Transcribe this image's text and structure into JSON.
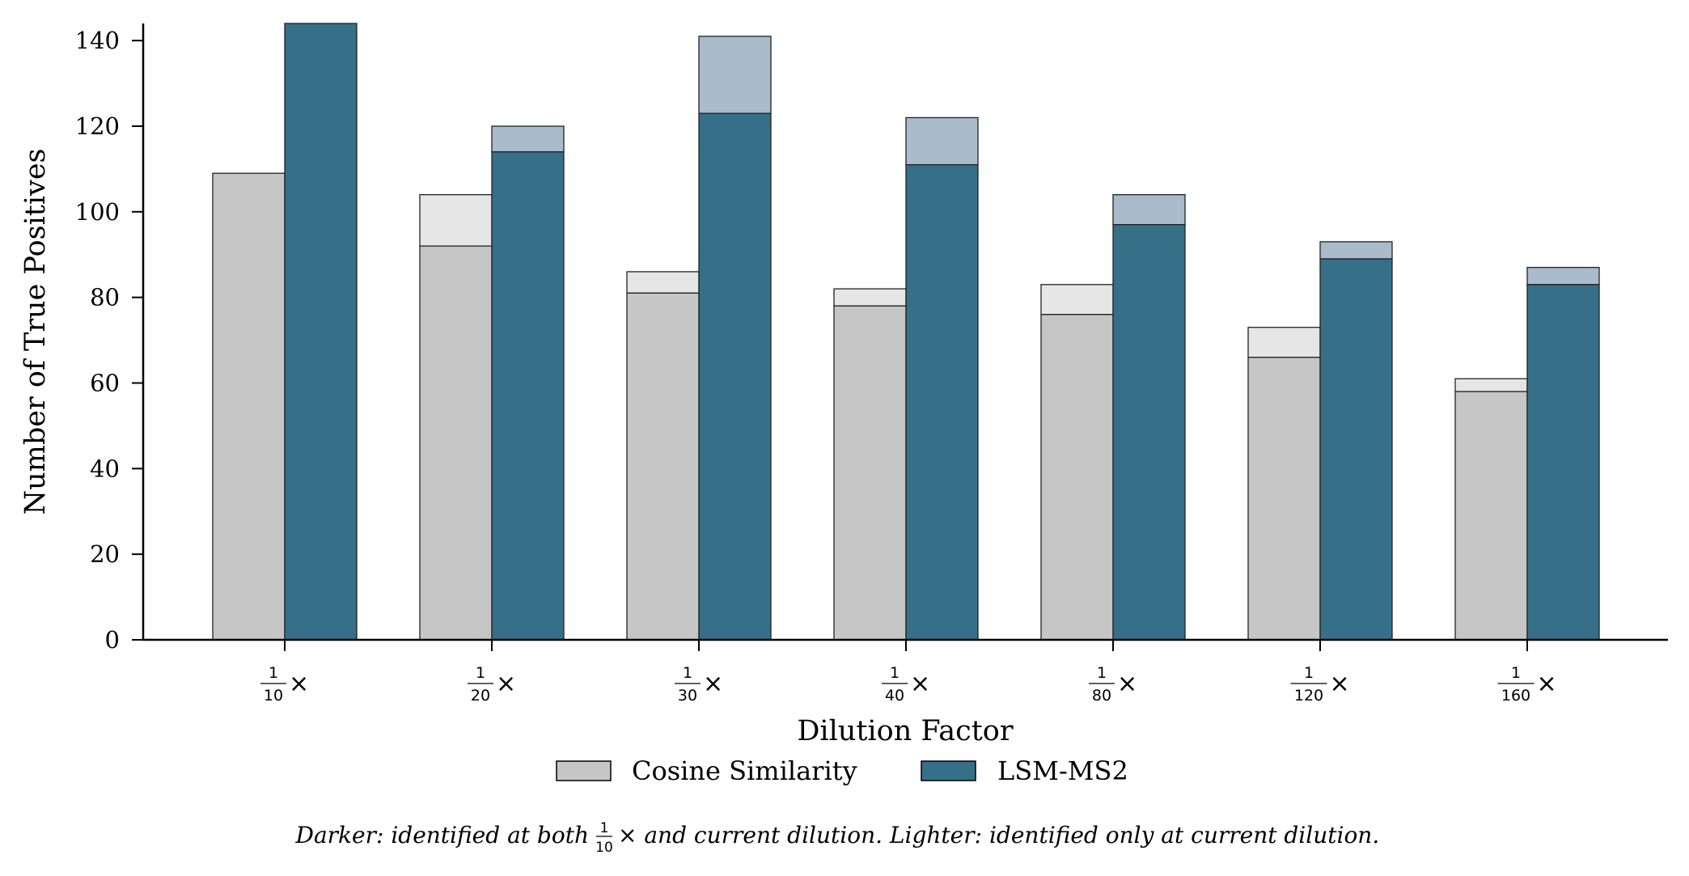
{
  "chart_data": {
    "type": "bar",
    "xlabel": "Dilution Factor",
    "ylabel": "Number of True Positives",
    "ylim": [
      0,
      144
    ],
    "yticks": [
      "0",
      "20",
      "40",
      "60",
      "80",
      "100",
      "120",
      "140"
    ],
    "categories": [
      {
        "num": "1",
        "den": "10",
        "suffix": "×"
      },
      {
        "num": "1",
        "den": "20",
        "suffix": "×"
      },
      {
        "num": "1",
        "den": "30",
        "suffix": "×"
      },
      {
        "num": "1",
        "den": "40",
        "suffix": "×"
      },
      {
        "num": "1",
        "den": "80",
        "suffix": "×"
      },
      {
        "num": "1",
        "den": "120",
        "suffix": "×"
      },
      {
        "num": "1",
        "den": "160",
        "suffix": "×"
      }
    ],
    "series": [
      {
        "name": "Cosine Similarity",
        "color_dark": "#c6c6c6",
        "color_light": "#e6e6e6",
        "both": [
          109,
          92,
          81,
          78,
          76,
          66,
          58
        ],
        "total": [
          109,
          104,
          86,
          82,
          83,
          73,
          61
        ]
      },
      {
        "name": "LSM-MS2",
        "color_dark": "#356f88",
        "color_light": "#aabccb",
        "both": [
          144,
          114,
          123,
          111,
          97,
          89,
          83
        ],
        "total": [
          144,
          120,
          141,
          122,
          104,
          93,
          87
        ]
      }
    ],
    "legend": [
      "Cosine Similarity",
      "LSM-MS2"
    ],
    "legend_position": "bottom-center"
  },
  "caption": {
    "part1": "Darker: identified at both ",
    "frac_num": "1",
    "frac_den": "10",
    "part2": "× and current dilution. Lighter: identified only at current dilution."
  }
}
